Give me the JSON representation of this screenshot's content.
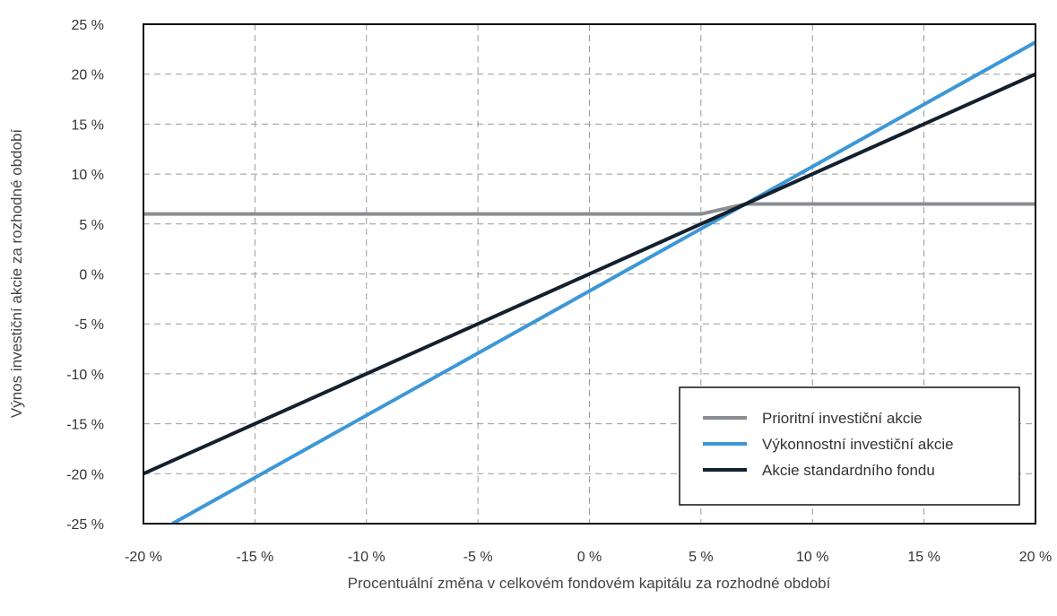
{
  "chart_data": {
    "type": "line",
    "title": "",
    "xlabel": "Procentuální změna v celkovém fondovém kapitálu za rozhodné období",
    "ylabel": "Výnos investiční akcie za rozhodné období",
    "xlim": [
      -20,
      20
    ],
    "ylim": [
      -25,
      25
    ],
    "x_ticks": [
      -20,
      -15,
      -10,
      -5,
      0,
      5,
      10,
      15,
      20
    ],
    "y_ticks": [
      -25,
      -20,
      -15,
      -10,
      -5,
      0,
      5,
      10,
      15,
      20,
      25
    ],
    "x_tick_labels": [
      "-20 %",
      "-15 %",
      "-10 %",
      "-5 %",
      "0 %",
      "5 %",
      "10 %",
      "15 %",
      "20 %"
    ],
    "y_tick_labels": [
      "-25 %",
      "-20 %",
      "-15 %",
      "-10 %",
      "-5 %",
      "0 %",
      "5 %",
      "10 %",
      "15 %",
      "20 %",
      "25 %"
    ],
    "grid": true,
    "legend_position": "bottom-right",
    "series": [
      {
        "name": "Prioritní investiční akcie",
        "color": "#8a8d91",
        "points": [
          [
            -20,
            6.0
          ],
          [
            5,
            6.0
          ],
          [
            7,
            7.0
          ],
          [
            20,
            7.0
          ]
        ]
      },
      {
        "name": "Výkonnostní investiční akcie",
        "color": "#3d97d6",
        "points": [
          [
            -18.7,
            -25
          ],
          [
            20,
            23.2
          ]
        ]
      },
      {
        "name": "Akcie standardního fondu",
        "color": "#14202e",
        "points": [
          [
            -20,
            -20
          ],
          [
            20,
            20
          ]
        ]
      }
    ]
  }
}
